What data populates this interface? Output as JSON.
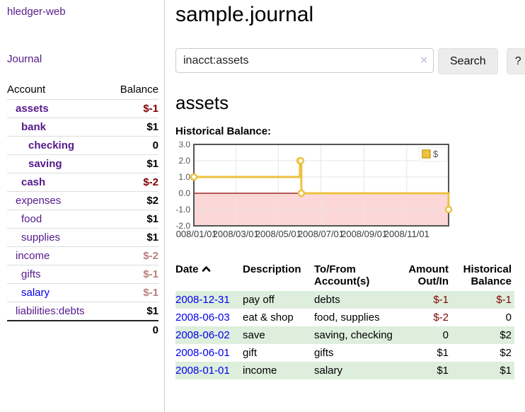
{
  "app": {
    "brand": "hledger-web",
    "nav_journal": "Journal"
  },
  "sidebar": {
    "col_account": "Account",
    "col_balance": "Balance",
    "accounts": [
      {
        "name": "assets",
        "balance": "$-1"
      },
      {
        "name": "bank",
        "balance": "$1"
      },
      {
        "name": "checking",
        "balance": "0"
      },
      {
        "name": "saving",
        "balance": "$1"
      },
      {
        "name": "cash",
        "balance": "$-2"
      },
      {
        "name": "expenses",
        "balance": "$2"
      },
      {
        "name": "food",
        "balance": "$1"
      },
      {
        "name": "supplies",
        "balance": "$1"
      },
      {
        "name": "income",
        "balance": "$-2"
      },
      {
        "name": "gifts",
        "balance": "$-1"
      },
      {
        "name": "salary",
        "balance": "$-1"
      },
      {
        "name": "liabilities:debts",
        "balance": "$1"
      }
    ],
    "total": "0"
  },
  "header": {
    "title": "sample.journal"
  },
  "search": {
    "value": "inacct:assets",
    "clear": "×",
    "button": "Search",
    "help": "?"
  },
  "account_page": {
    "heading": "assets",
    "chart_label": "Historical Balance:"
  },
  "chart_data": {
    "type": "line",
    "style": "steps",
    "title": "Historical Balance:",
    "series": [
      {
        "name": "$",
        "color": "#edc240",
        "points": [
          [
            "2008-01-01",
            1.0
          ],
          [
            "2008-06-01",
            2.0
          ],
          [
            "2008-06-02",
            2.0
          ],
          [
            "2008-06-03",
            0.0
          ],
          [
            "2008-12-31",
            -1.0
          ]
        ]
      }
    ],
    "xlim": [
      "2008-01-01",
      "2008-12-31"
    ],
    "ylim": [
      -2.0,
      3.0
    ],
    "y_ticks": [
      3.0,
      2.0,
      1.0,
      0.0,
      -1.0,
      -2.0
    ],
    "x_ticks": [
      {
        "date": "2008-01-01",
        "label": "2008/01/01"
      },
      {
        "date": "2008-03-01",
        "label": "2008/03/01"
      },
      {
        "date": "2008-05-01",
        "label": "2008/05/01"
      },
      {
        "date": "2008-07-01",
        "label": "2008/07/01"
      },
      {
        "date": "2008-09-01",
        "label": "2008/09/01"
      },
      {
        "date": "2008-11-01",
        "label": "2008/11/01"
      }
    ],
    "grid": true,
    "legend_position": "top-right",
    "legend_label": "$",
    "colors": {
      "line": "#edc240",
      "legend_square": "#edc240",
      "negative_region": "#fcd7d7",
      "zero_line": "#8b0000",
      "gridline": "#e6e6e6",
      "plot_border": "#545454",
      "tick_text": "#545454"
    }
  },
  "register": {
    "headers": {
      "date": "Date",
      "description": "Description",
      "tofrom1": "To/From",
      "tofrom2": "Account(s)",
      "amount1": "Amount",
      "amount2": "Out/In",
      "balance1": "Historical",
      "balance2": "Balance"
    },
    "rows": [
      {
        "date": "2008-12-31",
        "description": "pay off",
        "accounts": "debts",
        "amount": "$-1",
        "balance": "$-1"
      },
      {
        "date": "2008-06-03",
        "description": "eat & shop",
        "accounts": "food, supplies",
        "amount": "$-2",
        "balance": "0"
      },
      {
        "date": "2008-06-02",
        "description": "save",
        "accounts": "saving, checking",
        "amount": "0",
        "balance": "$2"
      },
      {
        "date": "2008-06-01",
        "description": "gift",
        "accounts": "gifts",
        "amount": "$1",
        "balance": "$2"
      },
      {
        "date": "2008-01-01",
        "description": "income",
        "accounts": "salary",
        "amount": "$1",
        "balance": "$1"
      }
    ]
  }
}
